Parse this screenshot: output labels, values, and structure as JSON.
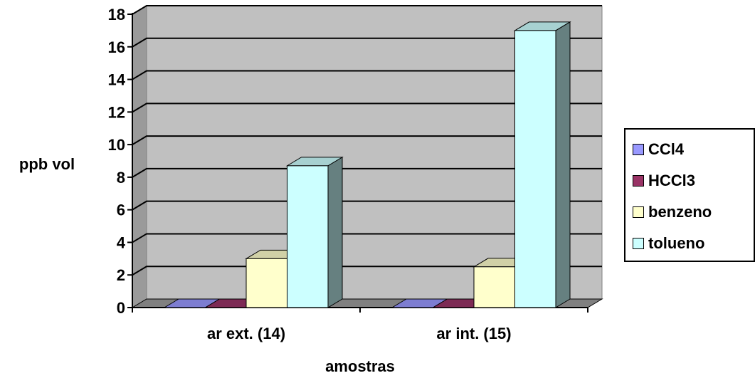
{
  "chart_data": {
    "type": "bar",
    "title": "",
    "xlabel": "amostras",
    "ylabel": "ppb vol",
    "categories": [
      "ar ext. (14)",
      "ar int. (15)"
    ],
    "series": [
      {
        "name": "CCl4",
        "values": [
          0,
          0
        ],
        "color": "#9999ff"
      },
      {
        "name": "HCCl3",
        "values": [
          0,
          0
        ],
        "color": "#993366"
      },
      {
        "name": "benzeno",
        "values": [
          3,
          2.5
        ],
        "color": "#ffffcc"
      },
      {
        "name": "tolueno",
        "values": [
          8.7,
          17
        ],
        "color": "#ccffff"
      }
    ],
    "ylim": [
      0,
      18
    ],
    "yticks": [
      "0",
      "2",
      "4",
      "6",
      "8",
      "10",
      "12",
      "14",
      "16",
      "18"
    ],
    "grid": true,
    "legend_position": "right",
    "style": "3d-clustered-column"
  }
}
